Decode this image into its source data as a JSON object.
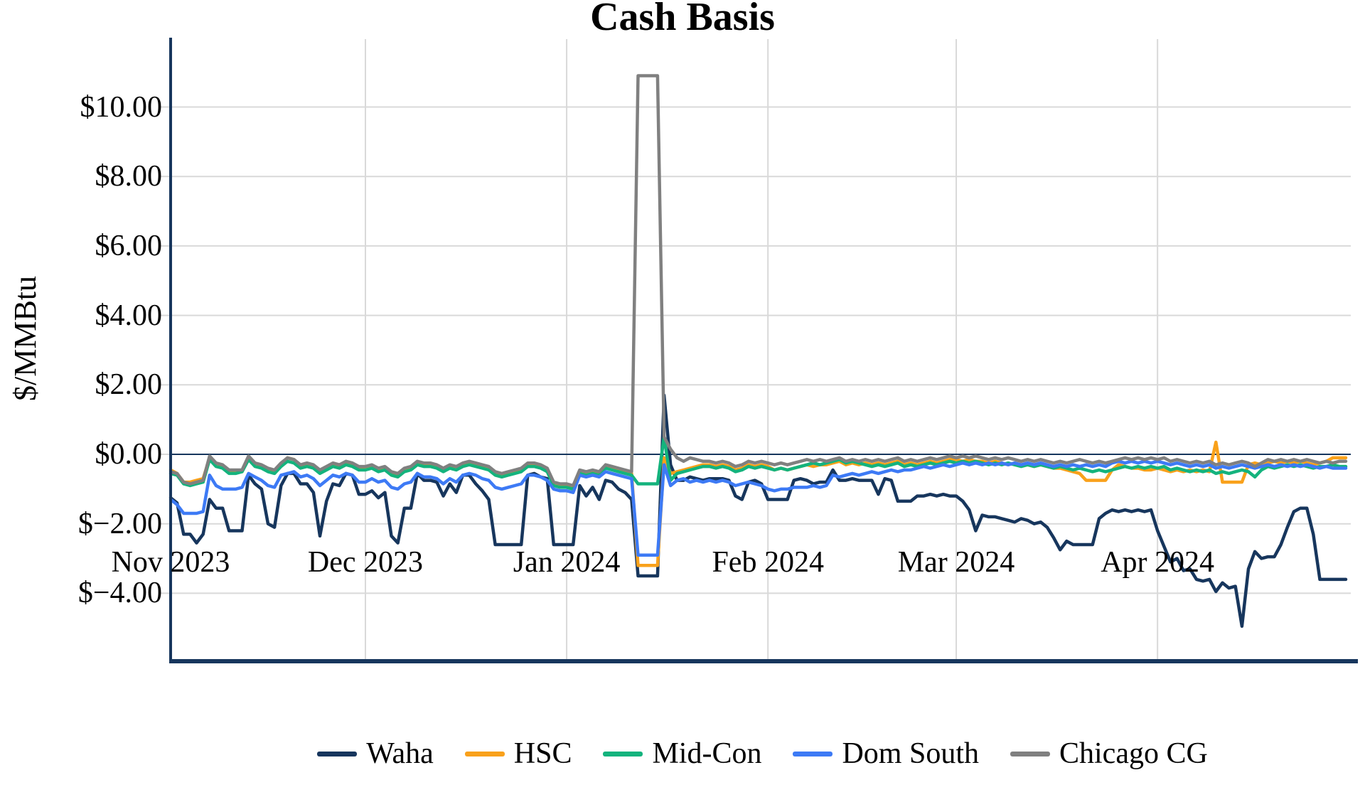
{
  "chart_data": {
    "type": "line",
    "title": "Cash Basis",
    "ylabel": "$/MMBtu",
    "x_start_date": "2023-11-01",
    "x_end_date": "2024-04-30",
    "frequency": "daily",
    "ylim": [
      -5.96,
      11.96
    ],
    "grid": {
      "vertical": true,
      "horizontal": true,
      "color": "#d9d9d9"
    },
    "zero_line_color": "#17365d",
    "axis_color": "#17365d",
    "legend_position": "bottom",
    "y_ticks": [
      {
        "label": "$10.00",
        "value": 10
      },
      {
        "label": "$8.00",
        "value": 8
      },
      {
        "label": "$6.00",
        "value": 6
      },
      {
        "label": "$4.00",
        "value": 4
      },
      {
        "label": "$2.00",
        "value": 2
      },
      {
        "label": "$0.00",
        "value": 0
      },
      {
        "label": "$−2.00",
        "value": -2
      },
      {
        "label": "$−4.00",
        "value": -4
      }
    ],
    "x_ticks": [
      {
        "label": "Nov 2023",
        "day_index": 0
      },
      {
        "label": "Dec 2023",
        "day_index": 30
      },
      {
        "label": "Jan 2024",
        "day_index": 61
      },
      {
        "label": "Feb 2024",
        "day_index": 92
      },
      {
        "label": "Mar 2024",
        "day_index": 121
      },
      {
        "label": "Apr 2024",
        "day_index": 152
      }
    ],
    "series": [
      {
        "name": "Waha",
        "color": "#17365d",
        "values": [
          -1.25,
          -1.4,
          -2.3,
          -2.3,
          -2.55,
          -2.3,
          -1.3,
          -1.55,
          -1.55,
          -2.2,
          -2.2,
          -2.2,
          -0.6,
          -0.85,
          -1.0,
          -2.0,
          -2.1,
          -0.9,
          -0.55,
          -0.55,
          -0.85,
          -0.85,
          -1.1,
          -2.35,
          -1.35,
          -0.85,
          -0.9,
          -0.55,
          -0.6,
          -1.15,
          -1.15,
          -1.05,
          -1.25,
          -1.1,
          -2.35,
          -2.55,
          -1.55,
          -1.55,
          -0.55,
          -0.75,
          -0.75,
          -0.8,
          -1.2,
          -0.85,
          -1.1,
          -0.6,
          -0.6,
          -0.85,
          -1.05,
          -1.3,
          -2.6,
          -2.6,
          -2.6,
          -2.6,
          -2.6,
          -0.6,
          -0.55,
          -0.65,
          -0.7,
          -2.6,
          -2.6,
          -2.6,
          -2.6,
          -0.9,
          -1.2,
          -0.95,
          -1.3,
          -0.75,
          -0.8,
          -1.0,
          -1.1,
          -1.3,
          -3.5,
          -3.5,
          -3.5,
          -3.5,
          1.7,
          -0.3,
          -0.75,
          -0.75,
          -0.65,
          -0.7,
          -0.75,
          -0.7,
          -0.7,
          -0.7,
          -0.75,
          -1.2,
          -1.3,
          -0.8,
          -0.75,
          -0.85,
          -1.3,
          -1.3,
          -1.3,
          -1.3,
          -0.75,
          -0.7,
          -0.75,
          -0.85,
          -0.8,
          -0.8,
          -0.45,
          -0.75,
          -0.75,
          -0.7,
          -0.75,
          -0.75,
          -0.75,
          -1.15,
          -0.7,
          -0.75,
          -1.35,
          -1.35,
          -1.35,
          -1.2,
          -1.2,
          -1.15,
          -1.2,
          -1.15,
          -1.2,
          -1.2,
          -1.35,
          -1.6,
          -2.2,
          -1.75,
          -1.8,
          -1.8,
          -1.85,
          -1.9,
          -1.95,
          -1.85,
          -1.9,
          -2.0,
          -1.95,
          -2.1,
          -2.4,
          -2.75,
          -2.5,
          -2.6,
          -2.6,
          -2.6,
          -2.6,
          -1.85,
          -1.7,
          -1.6,
          -1.65,
          -1.6,
          -1.65,
          -1.6,
          -1.65,
          -1.6,
          -2.2,
          -2.65,
          -3.1,
          -3.0,
          -3.35,
          -3.3,
          -3.6,
          -3.65,
          -3.6,
          -3.95,
          -3.7,
          -3.85,
          -3.8,
          -4.95,
          -3.3,
          -2.8,
          -3.0,
          -2.95,
          -2.95,
          -2.6,
          -2.1,
          -1.65,
          -1.55,
          -1.55,
          -2.3,
          -3.6,
          -3.6,
          -3.6,
          -3.6,
          -3.6
        ]
      },
      {
        "name": "HSC",
        "color": "#f9a11b",
        "values": [
          -0.45,
          -0.55,
          -0.8,
          -0.8,
          -0.75,
          -0.7,
          -0.1,
          -0.3,
          -0.35,
          -0.5,
          -0.5,
          -0.5,
          -0.1,
          -0.3,
          -0.35,
          -0.45,
          -0.5,
          -0.3,
          -0.1,
          -0.15,
          -0.35,
          -0.3,
          -0.35,
          -0.5,
          -0.4,
          -0.3,
          -0.35,
          -0.25,
          -0.3,
          -0.4,
          -0.4,
          -0.35,
          -0.45,
          -0.4,
          -0.55,
          -0.6,
          -0.45,
          -0.4,
          -0.25,
          -0.3,
          -0.3,
          -0.35,
          -0.45,
          -0.35,
          -0.4,
          -0.3,
          -0.25,
          -0.3,
          -0.35,
          -0.4,
          -0.55,
          -0.6,
          -0.55,
          -0.5,
          -0.45,
          -0.3,
          -0.3,
          -0.35,
          -0.45,
          -0.85,
          -0.9,
          -0.9,
          -0.95,
          -0.5,
          -0.55,
          -0.5,
          -0.55,
          -0.35,
          -0.4,
          -0.45,
          -0.5,
          -0.55,
          -3.2,
          -3.2,
          -3.2,
          -3.2,
          -0.1,
          -0.55,
          -0.5,
          -0.45,
          -0.4,
          -0.35,
          -0.3,
          -0.3,
          -0.35,
          -0.3,
          -0.35,
          -0.45,
          -0.4,
          -0.3,
          -0.35,
          -0.3,
          -0.35,
          -0.45,
          -0.4,
          -0.45,
          -0.4,
          -0.35,
          -0.3,
          -0.35,
          -0.3,
          -0.3,
          -0.25,
          -0.2,
          -0.3,
          -0.25,
          -0.3,
          -0.25,
          -0.3,
          -0.25,
          -0.3,
          -0.25,
          -0.2,
          -0.3,
          -0.25,
          -0.3,
          -0.25,
          -0.2,
          -0.25,
          -0.2,
          -0.15,
          -0.15,
          -0.2,
          -0.15,
          -0.2,
          -0.2,
          -0.25,
          -0.2,
          -0.25,
          -0.3,
          -0.25,
          -0.3,
          -0.3,
          -0.35,
          -0.3,
          -0.35,
          -0.4,
          -0.4,
          -0.45,
          -0.5,
          -0.55,
          -0.75,
          -0.75,
          -0.75,
          -0.75,
          -0.45,
          -0.3,
          -0.35,
          -0.4,
          -0.4,
          -0.45,
          -0.45,
          -0.4,
          -0.45,
          -0.5,
          -0.45,
          -0.5,
          -0.45,
          -0.5,
          -0.45,
          -0.5,
          0.35,
          -0.8,
          -0.8,
          -0.8,
          -0.8,
          -0.3,
          -0.25,
          -0.3,
          -0.25,
          -0.2,
          -0.25,
          -0.2,
          -0.25,
          -0.2,
          -0.25,
          -0.3,
          -0.25,
          -0.2,
          -0.1,
          -0.1,
          -0.1
        ]
      },
      {
        "name": "Mid-Con",
        "color": "#14b37d",
        "values": [
          -0.55,
          -0.6,
          -0.85,
          -0.9,
          -0.85,
          -0.8,
          -0.15,
          -0.35,
          -0.4,
          -0.55,
          -0.55,
          -0.5,
          -0.15,
          -0.35,
          -0.4,
          -0.5,
          -0.55,
          -0.35,
          -0.2,
          -0.25,
          -0.4,
          -0.35,
          -0.4,
          -0.55,
          -0.45,
          -0.35,
          -0.4,
          -0.3,
          -0.35,
          -0.45,
          -0.45,
          -0.4,
          -0.5,
          -0.45,
          -0.6,
          -0.65,
          -0.5,
          -0.45,
          -0.3,
          -0.35,
          -0.35,
          -0.4,
          -0.5,
          -0.4,
          -0.45,
          -0.35,
          -0.3,
          -0.35,
          -0.4,
          -0.45,
          -0.6,
          -0.65,
          -0.6,
          -0.55,
          -0.5,
          -0.35,
          -0.35,
          -0.4,
          -0.5,
          -0.9,
          -0.95,
          -0.95,
          -1.0,
          -0.55,
          -0.6,
          -0.55,
          -0.6,
          -0.4,
          -0.45,
          -0.5,
          -0.55,
          -0.6,
          -0.85,
          -0.85,
          -0.85,
          -0.85,
          0.5,
          -0.75,
          -0.55,
          -0.5,
          -0.45,
          -0.4,
          -0.35,
          -0.35,
          -0.4,
          -0.35,
          -0.4,
          -0.5,
          -0.45,
          -0.35,
          -0.4,
          -0.35,
          -0.4,
          -0.45,
          -0.4,
          -0.45,
          -0.4,
          -0.35,
          -0.3,
          -0.25,
          -0.3,
          -0.25,
          -0.2,
          -0.15,
          -0.25,
          -0.2,
          -0.25,
          -0.3,
          -0.35,
          -0.3,
          -0.35,
          -0.3,
          -0.25,
          -0.35,
          -0.3,
          -0.35,
          -0.3,
          -0.25,
          -0.3,
          -0.25,
          -0.2,
          -0.25,
          -0.2,
          -0.25,
          -0.2,
          -0.25,
          -0.3,
          -0.25,
          -0.3,
          -0.25,
          -0.3,
          -0.35,
          -0.3,
          -0.35,
          -0.3,
          -0.35,
          -0.4,
          -0.35,
          -0.4,
          -0.45,
          -0.4,
          -0.45,
          -0.5,
          -0.45,
          -0.5,
          -0.45,
          -0.4,
          -0.35,
          -0.4,
          -0.35,
          -0.4,
          -0.35,
          -0.4,
          -0.35,
          -0.45,
          -0.4,
          -0.45,
          -0.5,
          -0.45,
          -0.5,
          -0.45,
          -0.55,
          -0.5,
          -0.55,
          -0.5,
          -0.45,
          -0.5,
          -0.65,
          -0.45,
          -0.35,
          -0.4,
          -0.35,
          -0.3,
          -0.35,
          -0.3,
          -0.35,
          -0.4,
          -0.35,
          -0.35,
          -0.3,
          -0.35,
          -0.35
        ]
      },
      {
        "name": "Dom South",
        "color": "#3d7af5",
        "values": [
          -1.3,
          -1.45,
          -1.7,
          -1.7,
          -1.7,
          -1.65,
          -0.6,
          -0.9,
          -1.0,
          -1.0,
          -1.0,
          -0.95,
          -0.55,
          -0.65,
          -0.75,
          -0.9,
          -0.95,
          -0.6,
          -0.55,
          -0.5,
          -0.65,
          -0.6,
          -0.7,
          -0.9,
          -0.75,
          -0.6,
          -0.65,
          -0.55,
          -0.6,
          -0.8,
          -0.8,
          -0.7,
          -0.8,
          -0.75,
          -0.95,
          -1.0,
          -0.85,
          -0.8,
          -0.55,
          -0.65,
          -0.65,
          -0.7,
          -0.85,
          -0.7,
          -0.8,
          -0.6,
          -0.55,
          -0.6,
          -0.7,
          -0.75,
          -0.95,
          -1.0,
          -0.95,
          -0.9,
          -0.85,
          -0.6,
          -0.6,
          -0.65,
          -0.75,
          -1.0,
          -1.05,
          -1.05,
          -1.1,
          -0.6,
          -0.65,
          -0.6,
          -0.65,
          -0.5,
          -0.55,
          -0.6,
          -0.65,
          -0.7,
          -2.9,
          -2.9,
          -2.9,
          -2.9,
          -0.3,
          -0.9,
          -0.75,
          -0.7,
          -0.8,
          -0.75,
          -0.8,
          -0.75,
          -0.8,
          -0.75,
          -0.8,
          -0.9,
          -0.85,
          -0.8,
          -0.85,
          -0.9,
          -1.0,
          -1.05,
          -1.0,
          -1.0,
          -0.95,
          -0.95,
          -0.95,
          -0.9,
          -0.95,
          -0.9,
          -0.6,
          -0.65,
          -0.6,
          -0.55,
          -0.6,
          -0.55,
          -0.5,
          -0.55,
          -0.5,
          -0.45,
          -0.5,
          -0.45,
          -0.45,
          -0.4,
          -0.35,
          -0.4,
          -0.35,
          -0.3,
          -0.35,
          -0.3,
          -0.25,
          -0.3,
          -0.25,
          -0.3,
          -0.25,
          -0.3,
          -0.25,
          -0.3,
          -0.25,
          -0.3,
          -0.25,
          -0.3,
          -0.25,
          -0.3,
          -0.35,
          -0.3,
          -0.35,
          -0.3,
          -0.35,
          -0.3,
          -0.35,
          -0.3,
          -0.35,
          -0.25,
          -0.2,
          -0.25,
          -0.2,
          -0.25,
          -0.2,
          -0.25,
          -0.2,
          -0.25,
          -0.3,
          -0.25,
          -0.3,
          -0.35,
          -0.3,
          -0.35,
          -0.3,
          -0.4,
          -0.35,
          -0.4,
          -0.35,
          -0.3,
          -0.35,
          -0.4,
          -0.35,
          -0.3,
          -0.35,
          -0.3,
          -0.35,
          -0.3,
          -0.35,
          -0.3,
          -0.35,
          -0.4,
          -0.35,
          -0.4,
          -0.4,
          -0.4
        ]
      },
      {
        "name": "Chicago CG",
        "color": "#808080",
        "values": [
          -0.5,
          -0.55,
          -0.8,
          -0.85,
          -0.8,
          -0.75,
          -0.05,
          -0.25,
          -0.3,
          -0.45,
          -0.45,
          -0.45,
          -0.05,
          -0.25,
          -0.3,
          -0.4,
          -0.45,
          -0.25,
          -0.1,
          -0.15,
          -0.3,
          -0.25,
          -0.3,
          -0.45,
          -0.35,
          -0.25,
          -0.3,
          -0.2,
          -0.25,
          -0.35,
          -0.35,
          -0.3,
          -0.4,
          -0.35,
          -0.5,
          -0.55,
          -0.4,
          -0.35,
          -0.2,
          -0.25,
          -0.25,
          -0.3,
          -0.4,
          -0.3,
          -0.35,
          -0.25,
          -0.2,
          -0.25,
          -0.3,
          -0.35,
          -0.5,
          -0.55,
          -0.5,
          -0.45,
          -0.4,
          -0.25,
          -0.25,
          -0.3,
          -0.4,
          -0.8,
          -0.85,
          -0.85,
          -0.9,
          -0.45,
          -0.5,
          -0.45,
          -0.5,
          -0.3,
          -0.35,
          -0.4,
          -0.45,
          -0.5,
          10.9,
          10.9,
          10.9,
          10.9,
          0.5,
          0.15,
          -0.1,
          -0.2,
          -0.1,
          -0.15,
          -0.2,
          -0.2,
          -0.25,
          -0.2,
          -0.25,
          -0.35,
          -0.3,
          -0.2,
          -0.25,
          -0.2,
          -0.25,
          -0.3,
          -0.25,
          -0.3,
          -0.25,
          -0.2,
          -0.15,
          -0.2,
          -0.15,
          -0.2,
          -0.15,
          -0.1,
          -0.2,
          -0.15,
          -0.2,
          -0.15,
          -0.2,
          -0.15,
          -0.2,
          -0.15,
          -0.1,
          -0.2,
          -0.15,
          -0.2,
          -0.15,
          -0.1,
          -0.15,
          -0.1,
          -0.05,
          -0.1,
          -0.05,
          -0.1,
          -0.05,
          -0.1,
          -0.15,
          -0.1,
          -0.15,
          -0.1,
          -0.15,
          -0.2,
          -0.15,
          -0.2,
          -0.15,
          -0.2,
          -0.25,
          -0.2,
          -0.25,
          -0.2,
          -0.15,
          -0.2,
          -0.25,
          -0.2,
          -0.25,
          -0.2,
          -0.15,
          -0.1,
          -0.15,
          -0.1,
          -0.15,
          -0.1,
          -0.15,
          -0.1,
          -0.2,
          -0.15,
          -0.2,
          -0.25,
          -0.2,
          -0.25,
          -0.2,
          -0.3,
          -0.25,
          -0.3,
          -0.25,
          -0.2,
          -0.25,
          -0.35,
          -0.25,
          -0.15,
          -0.2,
          -0.15,
          -0.2,
          -0.15,
          -0.2,
          -0.15,
          -0.2,
          -0.25,
          -0.2,
          -0.25,
          -0.2,
          -0.2
        ]
      }
    ]
  }
}
